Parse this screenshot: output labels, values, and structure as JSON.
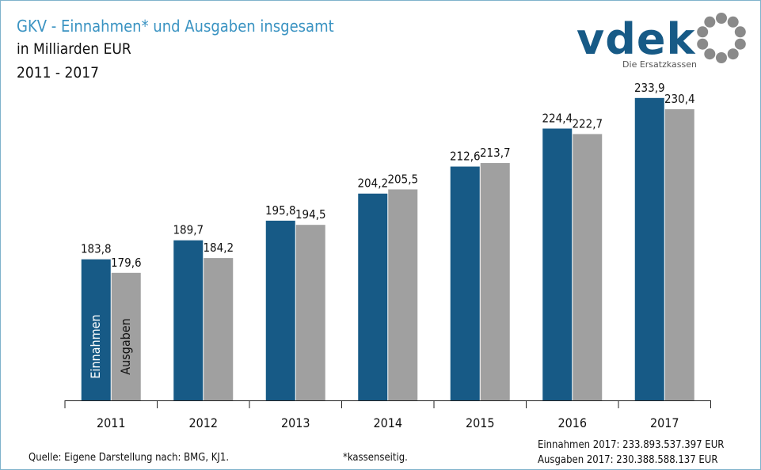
{
  "header": {
    "title": "GKV - Einnahmen* und Ausgaben insgesamt",
    "subtitle": "in Milliarden EUR",
    "years": "2011 - 2017"
  },
  "logo": {
    "wordmark": "vdek",
    "tagline": "Die Ersatzkassen"
  },
  "footer": {
    "source": "Quelle: Eigene Darstellung nach: BMG, KJ1.",
    "note": "*kassenseitig.",
    "income_2017": "Einnahmen 2017: 233.893.537.397  EUR",
    "expenses_2017": "Ausgaben 2017: 230.388.588.137  EUR"
  },
  "chart_data": {
    "type": "bar",
    "title": "GKV - Einnahmen* und Ausgaben insgesamt",
    "xlabel": "",
    "ylabel": "",
    "unit": "Milliarden EUR",
    "categories": [
      "2011",
      "2012",
      "2013",
      "2014",
      "2015",
      "2016",
      "2017"
    ],
    "series": [
      {
        "name": "Einnahmen",
        "color": "#175a86",
        "values": [
          183.8,
          189.7,
          195.8,
          204.2,
          212.6,
          224.4,
          233.9
        ],
        "labels": [
          "183,8",
          "189,7",
          "195,8",
          "204,2",
          "212,6",
          "224,4",
          "233,9"
        ]
      },
      {
        "name": "Ausgaben",
        "color": "#a0a0a0",
        "values": [
          179.6,
          184.2,
          194.5,
          205.5,
          213.7,
          222.7,
          230.4
        ],
        "labels": [
          "179,6",
          "184,2",
          "194,5",
          "205,5",
          "213,7",
          "222,7",
          "230,4"
        ]
      }
    ],
    "legend": "inside first bar pair (vertical text)",
    "grid": false
  }
}
